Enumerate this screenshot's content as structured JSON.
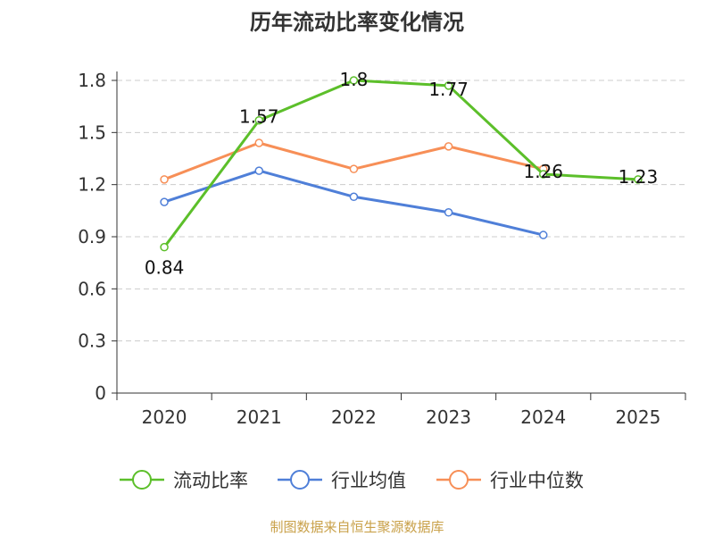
{
  "chart_data": {
    "type": "line",
    "title": "历年流动比率变化情况",
    "categories": [
      "2020",
      "2021",
      "2022",
      "2023",
      "2024",
      "2025"
    ],
    "ylim": [
      0,
      1.8
    ],
    "yticks": [
      0,
      0.3,
      0.6,
      0.9,
      1.2,
      1.5,
      1.8
    ],
    "ytick_labels": [
      "0",
      "0.3",
      "0.6",
      "0.9",
      "1.2",
      "1.5",
      "1.8"
    ],
    "grid": true,
    "legend_position": "bottom-center",
    "series": [
      {
        "name": "流动比率",
        "color": "#5cbf2a",
        "values": [
          0.84,
          1.57,
          1.8,
          1.77,
          1.26,
          1.23
        ],
        "labels": [
          "0.84",
          "1.57",
          "1.8",
          "1.77",
          "1.26",
          "1.23"
        ]
      },
      {
        "name": "行业均值",
        "color": "#4f7fd8",
        "values": [
          1.1,
          1.28,
          1.13,
          1.04,
          0.91,
          null
        ]
      },
      {
        "name": "行业中位数",
        "color": "#f78f57",
        "values": [
          1.23,
          1.44,
          1.29,
          1.42,
          1.29,
          null
        ]
      }
    ],
    "source": "制图数据来自恒生聚源数据库"
  }
}
